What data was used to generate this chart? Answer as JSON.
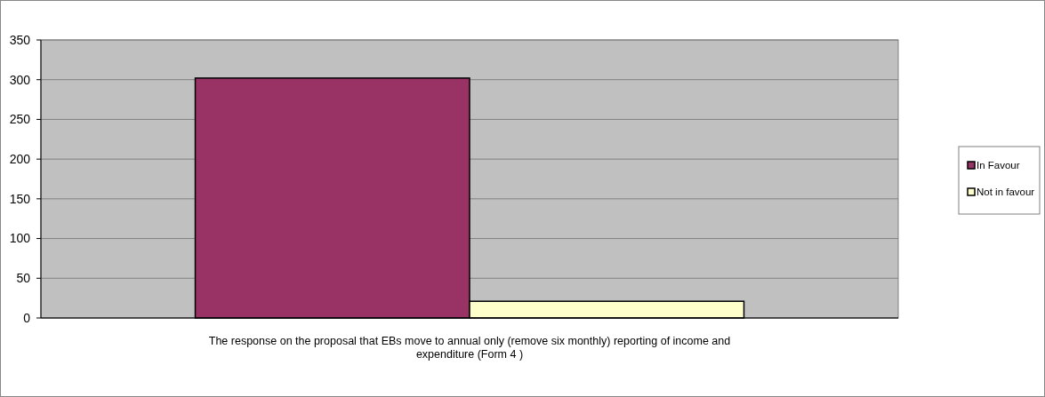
{
  "chart_data": {
    "type": "bar",
    "categories": [
      "The response on the proposal that EBs move to annual only (remove six monthly) reporting of income and expenditure (Form 4 )"
    ],
    "series": [
      {
        "name": "In Favour",
        "color": "#993366",
        "values": [
          302
        ]
      },
      {
        "name": "Not in favour",
        "color": "#ffffcc",
        "values": [
          21
        ]
      }
    ],
    "ylim": [
      0,
      350
    ],
    "yticks": [
      0,
      50,
      100,
      150,
      200,
      250,
      300,
      350
    ],
    "grid": "y",
    "legend": "right"
  }
}
